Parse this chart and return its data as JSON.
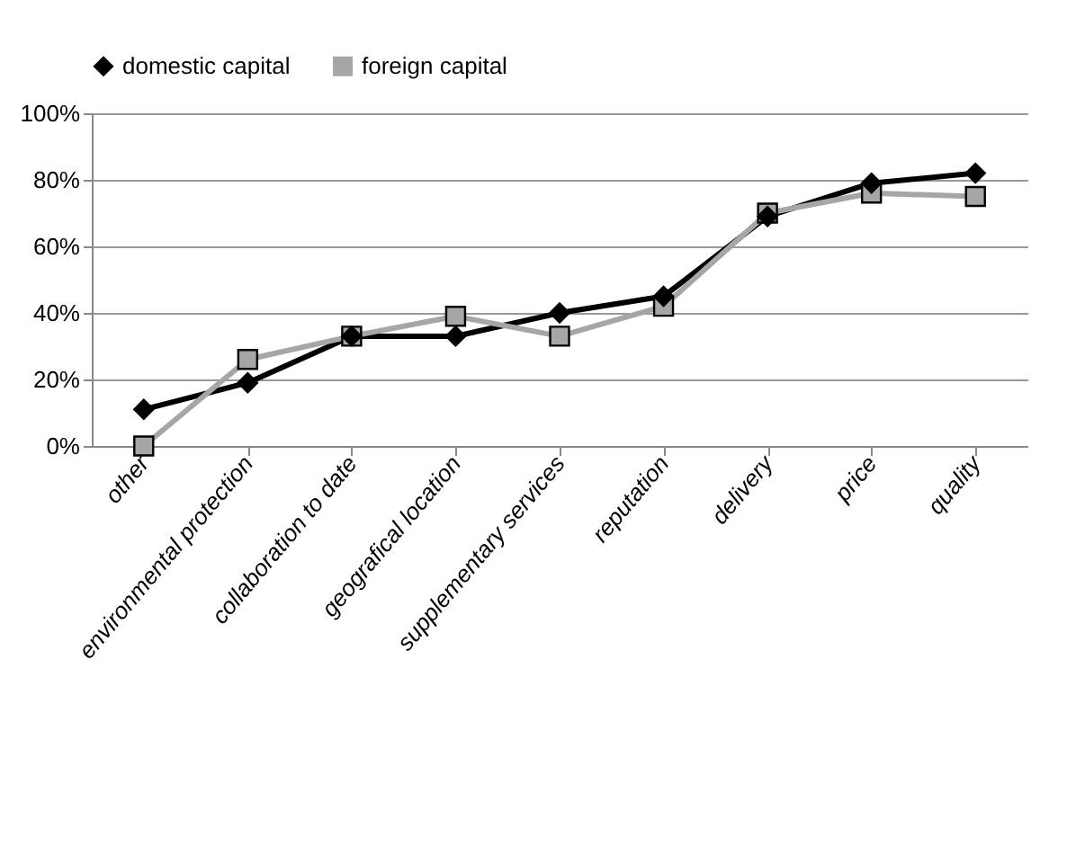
{
  "chart_data": {
    "type": "line",
    "categories": [
      "other",
      "environmental protection",
      "collaboration to date",
      "geografical location",
      "supplementary services",
      "reputation",
      "delivery",
      "price",
      "quality"
    ],
    "series": [
      {
        "name": "domestic capital",
        "color": "#000000",
        "marker": "diamond",
        "values": [
          11,
          19,
          33,
          33,
          40,
          45,
          69,
          79,
          82
        ]
      },
      {
        "name": "foreign capital",
        "color": "#a6a6a6",
        "marker": "square",
        "values": [
          0,
          26,
          33,
          39,
          33,
          42,
          70,
          76,
          75
        ]
      }
    ],
    "ylim": [
      0,
      100
    ],
    "yticks": [
      {
        "value": 0,
        "label": "0%"
      },
      {
        "value": 20,
        "label": "20%"
      },
      {
        "value": 40,
        "label": "40%"
      },
      {
        "value": 60,
        "label": "60%"
      },
      {
        "value": 80,
        "label": "80%"
      },
      {
        "value": 100,
        "label": "100%"
      }
    ],
    "grid": "y",
    "legend": "top"
  }
}
